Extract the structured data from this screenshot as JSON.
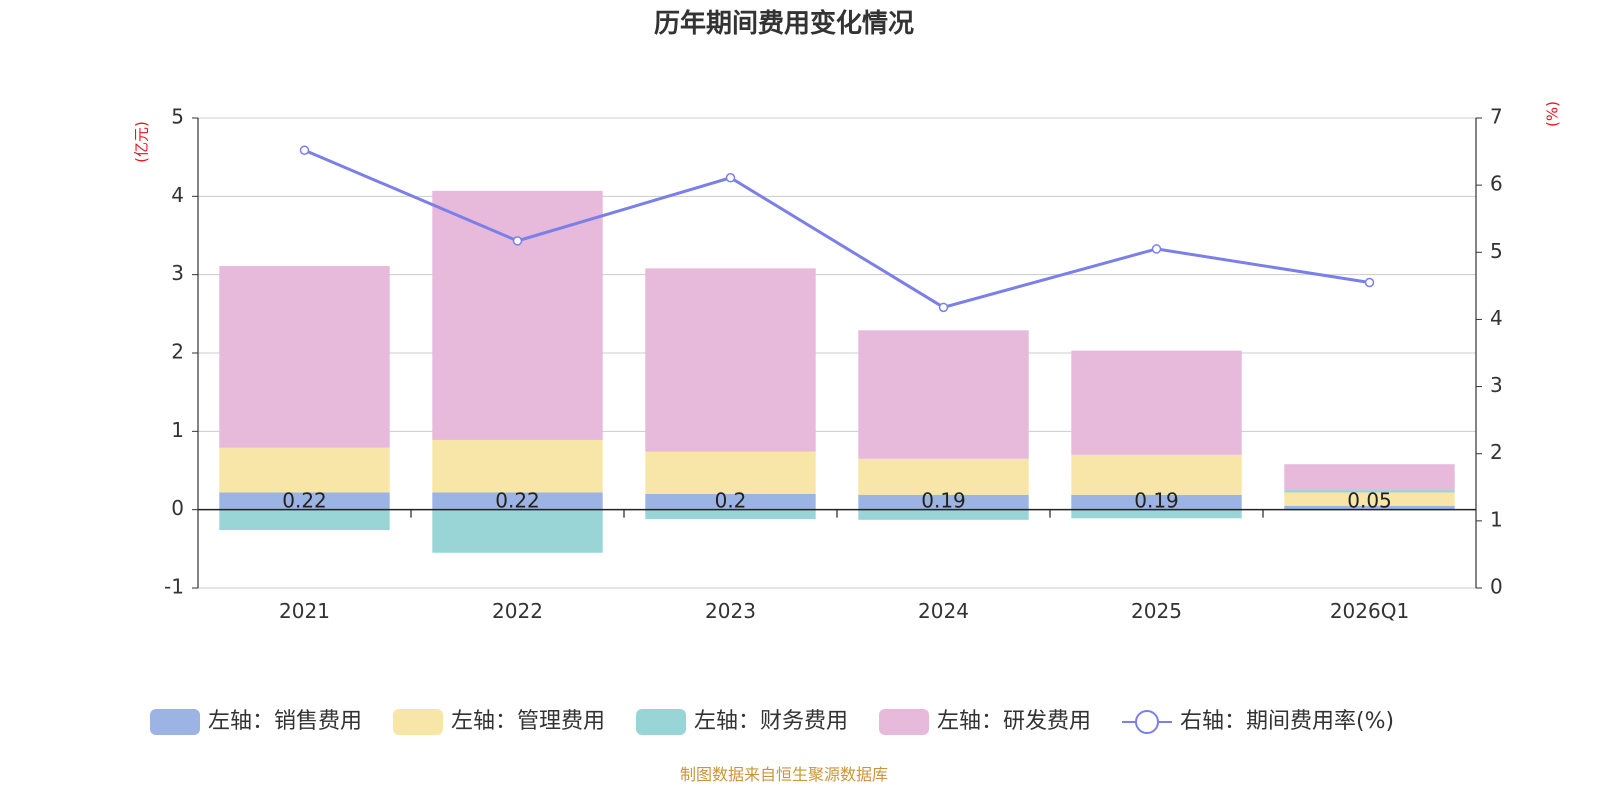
{
  "chart_data": {
    "type": "bar",
    "title": "历年期间费用变化情况",
    "categories": [
      "2021",
      "2022",
      "2023",
      "2024",
      "2025",
      "2026Q1"
    ],
    "y_left": {
      "unit": "(亿元)",
      "ylim": [
        -1,
        5
      ],
      "ticks": [
        5,
        4,
        3,
        2,
        1,
        0,
        -1
      ]
    },
    "y_right": {
      "unit": "(%)",
      "ylim": [
        0,
        7
      ],
      "ticks": [
        7,
        6,
        5,
        4,
        3,
        2,
        1,
        0
      ]
    },
    "series": [
      {
        "name": "左轴：销售费用",
        "axis": "left",
        "stack": true,
        "color": "#9bb4e3",
        "values": [
          0.22,
          0.22,
          0.2,
          0.19,
          0.19,
          0.05
        ],
        "labels": [
          "0.22",
          "0.22",
          "0.2",
          "0.19",
          "0.19",
          "0.05"
        ]
      },
      {
        "name": "左轴：管理费用",
        "axis": "left",
        "stack": true,
        "color": "#f8e6a8",
        "values": [
          0.57,
          0.67,
          0.54,
          0.46,
          0.51,
          0.17
        ],
        "labels": []
      },
      {
        "name": "左轴：财务费用",
        "axis": "left",
        "stack": true,
        "color": "#99d5d6",
        "values": [
          -0.26,
          -0.55,
          -0.12,
          -0.13,
          -0.11,
          0.03
        ],
        "labels": []
      },
      {
        "name": "左轴：研发费用",
        "axis": "left",
        "stack": true,
        "color": "#e7b9da",
        "values": [
          2.32,
          3.18,
          2.34,
          1.64,
          1.33,
          0.33
        ],
        "labels": []
      },
      {
        "name": "右轴：期间费用率(%)",
        "axis": "right",
        "type": "line",
        "color": "#7b7fe8",
        "values": [
          6.52,
          5.17,
          6.11,
          4.18,
          5.05,
          4.55
        ]
      }
    ],
    "legend_position": "bottom",
    "grid": true
  },
  "source": "制图数据来自恒生聚源数据库"
}
